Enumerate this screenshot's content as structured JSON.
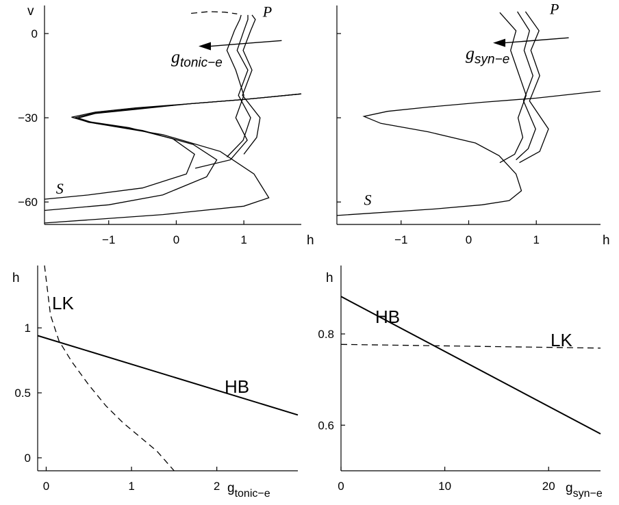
{
  "chart_data": [
    {
      "type": "line",
      "panel": "top-left",
      "xlabel": "h",
      "ylabel": "v",
      "xlim": [
        -1.95,
        1.85
      ],
      "ylim": [
        -68,
        10
      ],
      "xticks": [
        -1,
        0,
        1
      ],
      "yticks": [
        0,
        -30,
        -60
      ],
      "xtick_labels": [
        "−1",
        "0",
        "1"
      ],
      "ytick_labels": [
        "0",
        "−30",
        "−60"
      ],
      "curve_labels": [
        {
          "text": "S",
          "x": -1.78,
          "y": -57
        },
        {
          "text": "P",
          "x": 1.28,
          "y": 6
        }
      ],
      "arrow_label": {
        "main": "g",
        "sub": "tonic−e"
      },
      "arrow": {
        "from": [
          1.56,
          -2.5
        ],
        "to": [
          0.33,
          -4.5
        ]
      },
      "series": [
        {
          "style": "solid",
          "points": [
            [
              1.85,
              -21.5
            ],
            [
              1.0,
              -23.5
            ],
            [
              0.2,
              -25
            ],
            [
              -0.6,
              -26.5
            ],
            [
              -1.2,
              -28
            ],
            [
              -1.55,
              -29.8
            ],
            [
              -1.35,
              -31.2
            ],
            [
              -0.7,
              -33.5
            ],
            [
              -0.05,
              -37.5
            ],
            [
              0.27,
              -43
            ],
            [
              0.15,
              -50
            ],
            [
              -0.5,
              -55
            ],
            [
              -1.3,
              -57.5
            ],
            [
              -1.95,
              -59
            ]
          ]
        },
        {
          "style": "solid",
          "points": [
            [
              1.85,
              -21.5
            ],
            [
              1.0,
              -23.5
            ],
            [
              0.2,
              -25
            ],
            [
              -0.6,
              -26.8
            ],
            [
              -1.2,
              -28.3
            ],
            [
              -1.5,
              -30
            ],
            [
              -1.3,
              -31.6
            ],
            [
              -0.5,
              -34.5
            ],
            [
              0.25,
              -39.5
            ],
            [
              0.6,
              -45
            ],
            [
              0.45,
              -51
            ],
            [
              -0.2,
              -57.5
            ],
            [
              -1.0,
              -61
            ],
            [
              -1.95,
              -63
            ]
          ]
        },
        {
          "style": "solid",
          "points": [
            [
              1.85,
              -21.5
            ],
            [
              1.0,
              -23.5
            ],
            [
              0.2,
              -25
            ],
            [
              -0.6,
              -27
            ],
            [
              -1.2,
              -28.5
            ],
            [
              -1.45,
              -30.1
            ],
            [
              -1.2,
              -32
            ],
            [
              -0.2,
              -36
            ],
            [
              0.65,
              -42
            ],
            [
              1.15,
              -50
            ],
            [
              1.37,
              -58.5
            ],
            [
              1.0,
              -61.5
            ],
            [
              -0.2,
              -64.5
            ],
            [
              -1.95,
              -67.5
            ]
          ]
        },
        {
          "style": "solid",
          "points": [
            [
              0.28,
              -48
            ],
            [
              0.8,
              -45
            ],
            [
              1.05,
              -38
            ],
            [
              0.88,
              -30
            ],
            [
              1.0,
              -22
            ],
            [
              0.88,
              -13
            ],
            [
              0.75,
              -6
            ],
            [
              0.86,
              1
            ],
            [
              0.94,
              5
            ],
            [
              0.96,
              6.6
            ]
          ]
        },
        {
          "style": "solid",
          "points": [
            [
              0.75,
              -44
            ],
            [
              0.99,
              -38
            ],
            [
              1.1,
              -30
            ],
            [
              0.92,
              -22
            ],
            [
              1.06,
              -13
            ],
            [
              0.9,
              -6
            ],
            [
              1.0,
              1
            ],
            [
              1.06,
              5
            ],
            [
              1.06,
              6.6
            ]
          ]
        },
        {
          "style": "solid",
          "points": [
            [
              1.0,
              -43
            ],
            [
              1.19,
              -37
            ],
            [
              1.24,
              -30
            ],
            [
              0.98,
              -22
            ],
            [
              1.12,
              -13
            ],
            [
              0.99,
              -6
            ],
            [
              1.1,
              1
            ],
            [
              1.17,
              5
            ],
            [
              1.12,
              6.6
            ]
          ]
        },
        {
          "style": "dashed",
          "points": [
            [
              0.22,
              7.2
            ],
            [
              0.48,
              7.8
            ],
            [
              0.72,
              7.6
            ],
            [
              0.9,
              7.0
            ]
          ]
        }
      ]
    },
    {
      "type": "line",
      "panel": "top-right",
      "xlabel": "h",
      "xlim": [
        -1.95,
        1.95
      ],
      "ylim": [
        -68,
        10
      ],
      "xticks": [
        -1,
        0,
        1
      ],
      "yticks": [
        0,
        -30,
        -60
      ],
      "xtick_labels": [
        "−1",
        "0",
        "1"
      ],
      "curve_labels": [
        {
          "text": "S",
          "x": -1.55,
          "y": -61
        },
        {
          "text": "P",
          "x": 1.2,
          "y": 7
        }
      ],
      "arrow_label": {
        "main": "g",
        "sub": "syn−e"
      },
      "arrow": {
        "from": [
          1.48,
          -1.5
        ],
        "to": [
          0.36,
          -3.3
        ]
      },
      "series": [
        {
          "style": "solid",
          "points": [
            [
              1.95,
              -20.5
            ],
            [
              1.0,
              -23
            ],
            [
              0.2,
              -24.5
            ],
            [
              -0.6,
              -26.2
            ],
            [
              -1.2,
              -27.7
            ],
            [
              -1.55,
              -29.5
            ],
            [
              -1.3,
              -32
            ],
            [
              -0.6,
              -35
            ],
            [
              0.1,
              -39
            ],
            [
              0.45,
              -43.5
            ],
            [
              0.7,
              -50
            ],
            [
              0.78,
              -56
            ],
            [
              0.6,
              -59.5
            ],
            [
              0.2,
              -61
            ],
            [
              -0.5,
              -62.5
            ],
            [
              -1.95,
              -64.8
            ]
          ]
        },
        {
          "style": "solid",
          "points": [
            [
              0.46,
              -46
            ],
            [
              0.68,
              -43
            ],
            [
              0.8,
              -37
            ],
            [
              0.73,
              -30
            ],
            [
              0.85,
              -22
            ],
            [
              0.72,
              -13
            ],
            [
              0.62,
              -6
            ],
            [
              0.7,
              1
            ],
            [
              0.46,
              7.5
            ]
          ]
        },
        {
          "style": "solid",
          "points": [
            [
              0.7,
              -45
            ],
            [
              0.88,
              -41
            ],
            [
              0.99,
              -34
            ],
            [
              0.81,
              -24
            ],
            [
              0.95,
              -15
            ],
            [
              0.82,
              -6
            ],
            [
              0.9,
              1
            ],
            [
              0.72,
              7.8
            ]
          ]
        },
        {
          "style": "solid",
          "points": [
            [
              0.75,
              -46
            ],
            [
              1.05,
              -42
            ],
            [
              1.18,
              -34
            ],
            [
              0.9,
              -24
            ],
            [
              1.05,
              -15
            ],
            [
              0.92,
              -6
            ],
            [
              1.04,
              1
            ],
            [
              0.84,
              7.8
            ]
          ]
        }
      ]
    },
    {
      "type": "line",
      "panel": "bottom-left",
      "xlabel": "g_tonic−e",
      "ylabel": "h",
      "xlim": [
        -0.1,
        2.95
      ],
      "ylim": [
        -0.1,
        1.48
      ],
      "xticks": [
        0,
        1,
        2
      ],
      "yticks": [
        0,
        0.5,
        1
      ],
      "xtick_labels": [
        "0",
        "1",
        "2"
      ],
      "ytick_labels": [
        "0",
        "0.5",
        "1"
      ],
      "series": [
        {
          "name": "HB",
          "style": "solid",
          "points": [
            [
              -0.1,
              0.94
            ],
            [
              2.95,
              0.33
            ]
          ]
        },
        {
          "name": "LK",
          "style": "dashed",
          "points": [
            [
              -0.02,
              1.48
            ],
            [
              0.05,
              1.1
            ],
            [
              0.15,
              0.9
            ],
            [
              0.3,
              0.74
            ],
            [
              0.5,
              0.56
            ],
            [
              0.7,
              0.4
            ],
            [
              0.9,
              0.27
            ],
            [
              1.1,
              0.16
            ],
            [
              1.3,
              0.05
            ],
            [
              1.5,
              -0.1
            ]
          ]
        }
      ]
    },
    {
      "type": "line",
      "panel": "bottom-right",
      "xlabel": "g_syn−e",
      "ylabel": "h",
      "xlim": [
        0,
        25
      ],
      "ylim": [
        0.5,
        0.95
      ],
      "xticks": [
        0,
        10,
        20
      ],
      "yticks": [
        0.6,
        0.8
      ],
      "xtick_labels": [
        "0",
        "10",
        "20"
      ],
      "ytick_labels": [
        "0.6",
        "0.8"
      ],
      "series": [
        {
          "name": "HB",
          "style": "solid",
          "points": [
            [
              0,
              0.882
            ],
            [
              25,
              0.581
            ]
          ]
        },
        {
          "name": "LK",
          "style": "dashed",
          "points": [
            [
              0,
              0.777
            ],
            [
              25,
              0.769
            ]
          ]
        }
      ]
    }
  ]
}
